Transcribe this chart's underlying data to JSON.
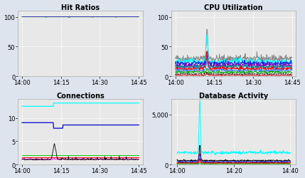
{
  "title_hit": "Hit Ratios",
  "title_cpu": "CPU Utilization",
  "title_conn": "Connections",
  "title_db": "Database Activity",
  "outer_bg": "#dde4ee",
  "plot_bg": "#e8e8e8",
  "grid_color": "#ffffff",
  "title_fontsize": 7,
  "tick_fontsize": 6,
  "lw": 0.7
}
